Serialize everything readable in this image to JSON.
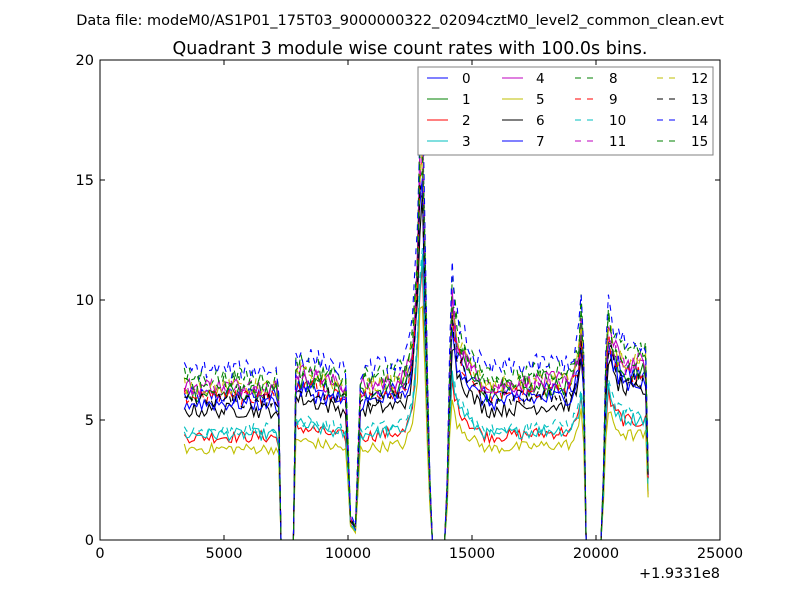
{
  "chart_data": {
    "type": "line",
    "suptitle": "Data file: modeM0/AS1P01_175T03_9000000322_02094cztM0_level2_common_clean.evt",
    "title": "Quadrant 3 module wise count rates with 100.0s bins.",
    "xlabel": "",
    "ylabel": "",
    "xlim": [
      0,
      25000
    ],
    "ylim": [
      0,
      20
    ],
    "x_offset_label": "+1.9331e8",
    "xticks": [
      0,
      5000,
      10000,
      15000,
      20000,
      25000
    ],
    "xtick_labels": [
      "0",
      "5000",
      "10000",
      "15000",
      "20000",
      "25000"
    ],
    "yticks": [
      0,
      5,
      10,
      15,
      20
    ],
    "ytick_labels": [
      "0",
      "5",
      "10",
      "15",
      "20"
    ],
    "grid": false,
    "legend_placement": "top-right",
    "legend_columns": 4,
    "bin_size": 100,
    "x_start": 3400,
    "x_end": 22100,
    "shape_profile": [
      [
        3400,
        1
      ],
      [
        7100,
        1
      ],
      [
        7200,
        0.9
      ],
      [
        7250,
        0
      ],
      [
        7800,
        0
      ],
      [
        7900,
        1.1
      ],
      [
        9900,
        1
      ],
      [
        10000,
        0.6
      ],
      [
        10100,
        0.15
      ],
      [
        10300,
        0.08
      ],
      [
        10400,
        0.5
      ],
      [
        10500,
        1
      ],
      [
        12300,
        1.05
      ],
      [
        12600,
        1.25
      ],
      [
        12800,
        1.8
      ],
      [
        12950,
        2.75
      ],
      [
        13050,
        2.4
      ],
      [
        13150,
        1.3
      ],
      [
        13300,
        0.4
      ],
      [
        13400,
        0
      ],
      [
        13950,
        0
      ],
      [
        14100,
        1.1
      ],
      [
        14200,
        1.55
      ],
      [
        14400,
        1.3
      ],
      [
        15000,
        1.1
      ],
      [
        15600,
        1
      ],
      [
        19000,
        1.05
      ],
      [
        19300,
        1.2
      ],
      [
        19450,
        1.55
      ],
      [
        19550,
        0.7
      ],
      [
        19600,
        0
      ],
      [
        20250,
        0
      ],
      [
        20350,
        0.8
      ],
      [
        20450,
        1.45
      ],
      [
        20700,
        1.25
      ],
      [
        21200,
        1.15
      ],
      [
        22000,
        1.15
      ],
      [
        22100,
        0.45
      ]
    ],
    "relative_noise": 0.06,
    "series": [
      {
        "name": "0",
        "color": "#0000ff",
        "style": "solid",
        "level": 6.0
      },
      {
        "name": "1",
        "color": "#008000",
        "style": "solid",
        "level": 6.1
      },
      {
        "name": "2",
        "color": "#ff0000",
        "style": "solid",
        "level": 4.3
      },
      {
        "name": "3",
        "color": "#00bfbf",
        "style": "solid",
        "level": 4.4
      },
      {
        "name": "4",
        "color": "#bf00bf",
        "style": "solid",
        "level": 6.4
      },
      {
        "name": "5",
        "color": "#bfbf00",
        "style": "solid",
        "level": 3.8
      },
      {
        "name": "6",
        "color": "#000000",
        "style": "solid",
        "level": 5.4
      },
      {
        "name": "7",
        "color": "#0000ff",
        "style": "solid",
        "level": 5.7
      },
      {
        "name": "8",
        "color": "#008000",
        "style": "dashed",
        "level": 6.8
      },
      {
        "name": "9",
        "color": "#ff0000",
        "style": "dashed",
        "level": 6.0
      },
      {
        "name": "10",
        "color": "#00bfbf",
        "style": "dashed",
        "level": 4.6
      },
      {
        "name": "11",
        "color": "#bf00bf",
        "style": "dashed",
        "level": 6.3
      },
      {
        "name": "12",
        "color": "#bfbf00",
        "style": "dashed",
        "level": 6.4
      },
      {
        "name": "13",
        "color": "#000000",
        "style": "dashed",
        "level": 5.8
      },
      {
        "name": "14",
        "color": "#0000ff",
        "style": "dashed",
        "level": 7.1
      },
      {
        "name": "15",
        "color": "#008000",
        "style": "dashed",
        "level": 6.5
      }
    ]
  }
}
